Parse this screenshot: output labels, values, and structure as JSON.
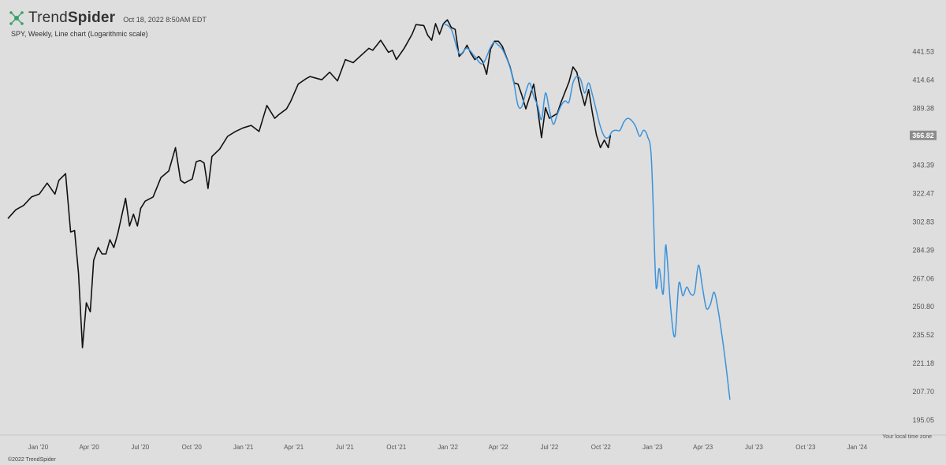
{
  "header": {
    "brand_light": "Trend",
    "brand_bold": "Spider",
    "timestamp": "Oct 18, 2022 8:50AM EDT",
    "subtitle": "SPY, Weekly, Line chart (Logarithmic scale)"
  },
  "footer": {
    "copyright": "©2022 TrendSpider",
    "timezone_note": "Your local time zone"
  },
  "colors": {
    "background": "#dedede",
    "price_line": "#111111",
    "projection_line": "#3a93dc",
    "price_tag": "#8c8c8c"
  },
  "chart_data": {
    "type": "line",
    "scale": "log",
    "ylim": [
      190,
      470
    ],
    "xlim": [
      "2019-11-08",
      "2024-02-09"
    ],
    "y_ticks": [
      441.53,
      414.64,
      389.38,
      366.82,
      343.39,
      322.47,
      302.83,
      284.39,
      267.06,
      250.8,
      235.52,
      221.18,
      207.7,
      195.05
    ],
    "x_ticks": [
      {
        "label": "Jan '20",
        "date": "2020-01-01"
      },
      {
        "label": "Apr '20",
        "date": "2020-04-01"
      },
      {
        "label": "Jul '20",
        "date": "2020-07-01"
      },
      {
        "label": "Oct '20",
        "date": "2020-10-01"
      },
      {
        "label": "Jan '21",
        "date": "2021-01-01"
      },
      {
        "label": "Apr '21",
        "date": "2021-04-01"
      },
      {
        "label": "Jul '21",
        "date": "2021-07-01"
      },
      {
        "label": "Oct '21",
        "date": "2021-10-01"
      },
      {
        "label": "Jan '22",
        "date": "2022-01-01"
      },
      {
        "label": "Apr '22",
        "date": "2022-04-01"
      },
      {
        "label": "Jul '22",
        "date": "2022-07-01"
      },
      {
        "label": "Oct '22",
        "date": "2022-10-01"
      },
      {
        "label": "Jan '23",
        "date": "2023-01-01"
      },
      {
        "label": "Apr '23",
        "date": "2023-04-01"
      },
      {
        "label": "Jul '23",
        "date": "2023-07-01"
      },
      {
        "label": "Oct '23",
        "date": "2023-10-01"
      },
      {
        "label": "Jan '24",
        "date": "2024-01-01"
      }
    ],
    "last_price": "366.82",
    "series": [
      {
        "points": [
          [
            "2019-11-08",
            305
          ],
          [
            "2019-11-22",
            311
          ],
          [
            "2019-12-06",
            314
          ],
          [
            "2019-12-20",
            320
          ],
          [
            "2020-01-03",
            322
          ],
          [
            "2020-01-17",
            330
          ],
          [
            "2020-01-31",
            322
          ],
          [
            "2020-02-07",
            332
          ],
          [
            "2020-02-19",
            337
          ],
          [
            "2020-02-28",
            296
          ],
          [
            "2020-03-06",
            297
          ],
          [
            "2020-03-13",
            270
          ],
          [
            "2020-03-20",
            229
          ],
          [
            "2020-03-27",
            253
          ],
          [
            "2020-04-03",
            248
          ],
          [
            "2020-04-09",
            278
          ],
          [
            "2020-04-17",
            286
          ],
          [
            "2020-04-24",
            282
          ],
          [
            "2020-05-01",
            282
          ],
          [
            "2020-05-08",
            291
          ],
          [
            "2020-05-15",
            286
          ],
          [
            "2020-05-22",
            295
          ],
          [
            "2020-06-05",
            319
          ],
          [
            "2020-06-12",
            300
          ],
          [
            "2020-06-19",
            308
          ],
          [
            "2020-06-26",
            300
          ],
          [
            "2020-07-02",
            312
          ],
          [
            "2020-07-10",
            317
          ],
          [
            "2020-07-24",
            320
          ],
          [
            "2020-08-07",
            334
          ],
          [
            "2020-08-21",
            339
          ],
          [
            "2020-09-02",
            357
          ],
          [
            "2020-09-11",
            332
          ],
          [
            "2020-09-18",
            330
          ],
          [
            "2020-10-02",
            333
          ],
          [
            "2020-10-09",
            346
          ],
          [
            "2020-10-16",
            347
          ],
          [
            "2020-10-23",
            345
          ],
          [
            "2020-10-30",
            326
          ],
          [
            "2020-11-06",
            350
          ],
          [
            "2020-11-20",
            356
          ],
          [
            "2020-12-04",
            366
          ],
          [
            "2020-12-18",
            370
          ],
          [
            "2021-01-01",
            373
          ],
          [
            "2021-01-15",
            375
          ],
          [
            "2021-01-29",
            370
          ],
          [
            "2021-02-12",
            392
          ],
          [
            "2021-02-26",
            381
          ],
          [
            "2021-03-05",
            384
          ],
          [
            "2021-03-19",
            389
          ],
          [
            "2021-03-26",
            395
          ],
          [
            "2021-04-09",
            411
          ],
          [
            "2021-04-23",
            416
          ],
          [
            "2021-04-30",
            418
          ],
          [
            "2021-05-14",
            416
          ],
          [
            "2021-05-21",
            415
          ],
          [
            "2021-06-04",
            422
          ],
          [
            "2021-06-18",
            414
          ],
          [
            "2021-07-02",
            434
          ],
          [
            "2021-07-16",
            431
          ],
          [
            "2021-07-30",
            438
          ],
          [
            "2021-08-13",
            445
          ],
          [
            "2021-08-20",
            443
          ],
          [
            "2021-09-03",
            453
          ],
          [
            "2021-09-17",
            441
          ],
          [
            "2021-09-24",
            443
          ],
          [
            "2021-10-01",
            434
          ],
          [
            "2021-10-15",
            445
          ],
          [
            "2021-10-29",
            459
          ],
          [
            "2021-11-05",
            469
          ],
          [
            "2021-11-19",
            468
          ],
          [
            "2021-11-26",
            458
          ],
          [
            "2021-12-03",
            453
          ],
          [
            "2021-12-10",
            470
          ],
          [
            "2021-12-17",
            459
          ],
          [
            "2021-12-24",
            470
          ],
          [
            "2021-12-31",
            474
          ],
          [
            "2022-01-07",
            466
          ],
          [
            "2022-01-14",
            464
          ],
          [
            "2022-01-21",
            437
          ],
          [
            "2022-01-28",
            441
          ],
          [
            "2022-02-04",
            448
          ],
          [
            "2022-02-11",
            440
          ],
          [
            "2022-02-18",
            434
          ],
          [
            "2022-02-25",
            437
          ],
          [
            "2022-03-04",
            432
          ],
          [
            "2022-03-11",
            420
          ],
          [
            "2022-03-18",
            444
          ],
          [
            "2022-03-25",
            452
          ],
          [
            "2022-04-01",
            452
          ],
          [
            "2022-04-08",
            447
          ],
          [
            "2022-04-22",
            427
          ],
          [
            "2022-04-29",
            412
          ],
          [
            "2022-05-06",
            411
          ],
          [
            "2022-05-13",
            401
          ],
          [
            "2022-05-20",
            389
          ],
          [
            "2022-06-03",
            411
          ],
          [
            "2022-06-10",
            389
          ],
          [
            "2022-06-17",
            365
          ],
          [
            "2022-06-24",
            390
          ],
          [
            "2022-07-01",
            381
          ],
          [
            "2022-07-15",
            385
          ],
          [
            "2022-07-22",
            395
          ],
          [
            "2022-08-05",
            413
          ],
          [
            "2022-08-12",
            427
          ],
          [
            "2022-08-19",
            422
          ],
          [
            "2022-08-26",
            405
          ],
          [
            "2022-09-02",
            392
          ],
          [
            "2022-09-09",
            406
          ],
          [
            "2022-09-16",
            385
          ],
          [
            "2022-09-23",
            367
          ],
          [
            "2022-09-30",
            357
          ],
          [
            "2022-10-07",
            363
          ],
          [
            "2022-10-14",
            357
          ],
          [
            "2022-10-18",
            367
          ]
        ]
      },
      {
        "points": [
          [
            "2021-12-24",
            470
          ],
          [
            "2022-01-07",
            464
          ],
          [
            "2022-01-21",
            440
          ],
          [
            "2022-02-04",
            445
          ],
          [
            "2022-02-18",
            437
          ],
          [
            "2022-03-04",
            430
          ],
          [
            "2022-03-18",
            446
          ],
          [
            "2022-03-25",
            451
          ],
          [
            "2022-04-01",
            448
          ],
          [
            "2022-04-08",
            444
          ],
          [
            "2022-04-15",
            436
          ],
          [
            "2022-04-22",
            426
          ],
          [
            "2022-04-29",
            411
          ],
          [
            "2022-05-06",
            392
          ],
          [
            "2022-05-13",
            391
          ],
          [
            "2022-05-20",
            404
          ],
          [
            "2022-05-27",
            412
          ],
          [
            "2022-06-03",
            400
          ],
          [
            "2022-06-10",
            392
          ],
          [
            "2022-06-17",
            380
          ],
          [
            "2022-06-24",
            403
          ],
          [
            "2022-07-01",
            388
          ],
          [
            "2022-07-08",
            376
          ],
          [
            "2022-07-15",
            384
          ],
          [
            "2022-07-22",
            392
          ],
          [
            "2022-07-29",
            396
          ],
          [
            "2022-08-05",
            395
          ],
          [
            "2022-08-12",
            412
          ],
          [
            "2022-08-19",
            418
          ],
          [
            "2022-08-26",
            415
          ],
          [
            "2022-09-02",
            403
          ],
          [
            "2022-09-09",
            412
          ],
          [
            "2022-09-16",
            401
          ],
          [
            "2022-09-23",
            387
          ],
          [
            "2022-09-30",
            374
          ],
          [
            "2022-10-07",
            366
          ],
          [
            "2022-10-14",
            365
          ],
          [
            "2022-10-21",
            370
          ],
          [
            "2022-10-28",
            371
          ],
          [
            "2022-11-04",
            371
          ],
          [
            "2022-11-11",
            378
          ],
          [
            "2022-11-18",
            381
          ],
          [
            "2022-11-25",
            379
          ],
          [
            "2022-12-02",
            374
          ],
          [
            "2022-12-09",
            366
          ],
          [
            "2022-12-16",
            371
          ],
          [
            "2022-12-23",
            366
          ],
          [
            "2022-12-30",
            348
          ],
          [
            "2023-01-06",
            270
          ],
          [
            "2023-01-09",
            262
          ],
          [
            "2023-01-13",
            273
          ],
          [
            "2023-01-20",
            258
          ],
          [
            "2023-01-24",
            286
          ],
          [
            "2023-01-27",
            280
          ],
          [
            "2023-02-03",
            248
          ],
          [
            "2023-02-10",
            235
          ],
          [
            "2023-02-17",
            264
          ],
          [
            "2023-02-24",
            257
          ],
          [
            "2023-03-03",
            262
          ],
          [
            "2023-03-10",
            258
          ],
          [
            "2023-03-17",
            259
          ],
          [
            "2023-03-24",
            275
          ],
          [
            "2023-03-31",
            262
          ],
          [
            "2023-04-07",
            250
          ],
          [
            "2023-04-14",
            252
          ],
          [
            "2023-04-21",
            259
          ],
          [
            "2023-04-28",
            249
          ],
          [
            "2023-05-05",
            235
          ],
          [
            "2023-05-12",
            220
          ],
          [
            "2023-05-19",
            204
          ]
        ]
      }
    ]
  }
}
